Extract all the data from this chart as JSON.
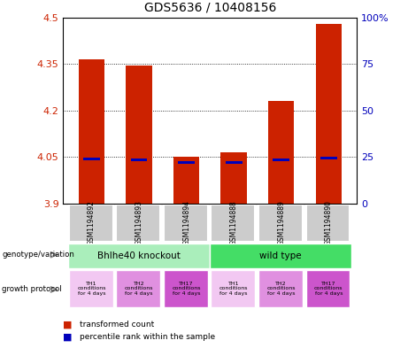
{
  "title": "GDS5636 / 10408156",
  "samples": [
    "GSM1194892",
    "GSM1194893",
    "GSM1194894",
    "GSM1194888",
    "GSM1194889",
    "GSM1194890"
  ],
  "red_values": [
    4.365,
    4.345,
    4.05,
    4.065,
    4.23,
    4.48
  ],
  "blue_values": [
    4.043,
    4.042,
    4.033,
    4.032,
    4.042,
    4.047
  ],
  "ylim": [
    3.9,
    4.5
  ],
  "yticks_left": [
    3.9,
    4.05,
    4.2,
    4.35,
    4.5
  ],
  "yticks_right": [
    0,
    25,
    50,
    75,
    100
  ],
  "genotype_groups": [
    {
      "label": "Bhlhe40 knockout",
      "color": "#AAEEBB"
    },
    {
      "label": "wild type",
      "color": "#44DD66"
    }
  ],
  "growth_protocols": [
    {
      "label": "TH1\nconditions\nfor 4 days",
      "color": "#F2C8F2"
    },
    {
      "label": "TH2\nconditions\nfor 4 days",
      "color": "#E090E0"
    },
    {
      "label": "TH17\nconditions\nfor 4 days",
      "color": "#CC55CC"
    },
    {
      "label": "TH1\nconditions\nfor 4 days",
      "color": "#F2C8F2"
    },
    {
      "label": "TH2\nconditions\nfor 4 days",
      "color": "#E090E0"
    },
    {
      "label": "TH17\nconditions\nfor 4 days",
      "color": "#CC55CC"
    }
  ],
  "bar_width": 0.55,
  "blue_bar_width": 0.35,
  "blue_bar_height": 0.009,
  "background_color": "#FFFFFF",
  "grid_color": "#000000",
  "left_axis_color": "#CC2200",
  "right_axis_color": "#0000BB",
  "bar_color": "#CC2200",
  "blue_bar_color": "#0000BB",
  "sample_bg_color": "#CCCCCC",
  "left_label_genotype": "genotype/variation",
  "left_label_growth": "growth protocol",
  "legend_red": "transformed count",
  "legend_blue": "percentile rank within the sample"
}
